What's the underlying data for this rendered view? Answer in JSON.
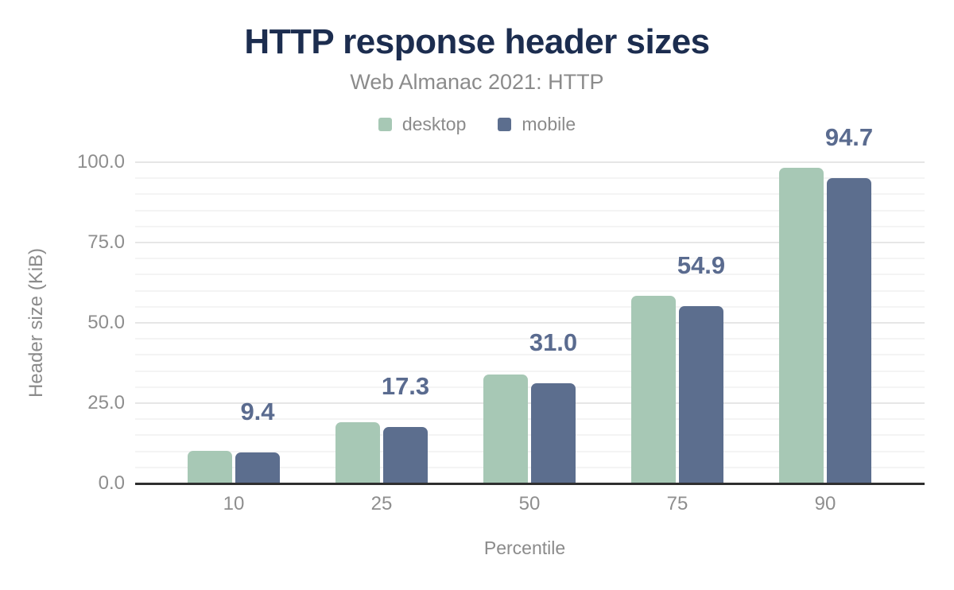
{
  "title": "HTTP response header sizes",
  "subtitle": "Web Almanac 2021: HTTP",
  "legend": [
    {
      "label": "desktop",
      "color": "#a7c8b5"
    },
    {
      "label": "mobile",
      "color": "#5c6e8e"
    }
  ],
  "colors": {
    "desktop_bar": "#a7c8b5",
    "mobile_bar": "#5c6e8e",
    "data_label": "#5a6b8f",
    "title_text": "#1c2d4f",
    "muted_text": "#8b8b8b",
    "axis_line": "#2f2f2f",
    "major_gridline": "#e6e6e6",
    "minor_gridline": "#f4f4f4"
  },
  "chart_data": {
    "type": "bar",
    "title": "HTTP response header sizes",
    "subtitle": "Web Almanac 2021: HTTP",
    "categories": [
      "10",
      "25",
      "50",
      "75",
      "90"
    ],
    "series": [
      {
        "name": "desktop",
        "color": "#a7c8b5",
        "values": [
          10.0,
          18.9,
          33.7,
          58.2,
          97.9
        ]
      },
      {
        "name": "mobile",
        "color": "#5c6e8e",
        "values": [
          9.4,
          17.3,
          31.0,
          54.9,
          94.7
        ]
      }
    ],
    "data_labels": {
      "series": "mobile",
      "texts": [
        "9.4",
        "17.3",
        "31.0",
        "54.9",
        "94.7"
      ]
    },
    "xlabel": "Percentile",
    "ylabel": "Header size (KiB)",
    "y_ticks": [
      {
        "label": "0.0",
        "value": 0
      },
      {
        "label": "25.0",
        "value": 25
      },
      {
        "label": "50.0",
        "value": 50
      },
      {
        "label": "75.0",
        "value": 75
      },
      {
        "label": "100.0",
        "value": 100
      }
    ],
    "ylim": [
      0,
      100
    ],
    "grid": "horizontal, minor gridline every 5 KiB, major every 25 KiB",
    "legend_position": "top"
  }
}
